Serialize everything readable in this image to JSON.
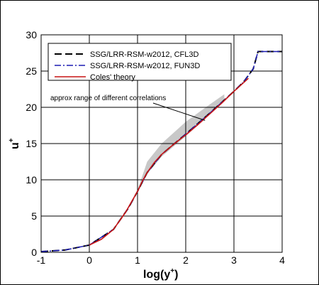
{
  "chart_data": {
    "type": "line",
    "xlabel": "log(y",
    "xlabel_sup": "+",
    "xlabel_close": ")",
    "ylabel": "u",
    "ylabel_sup": "+",
    "xlim": [
      -1,
      4
    ],
    "ylim": [
      0,
      30
    ],
    "xticks": [
      -1,
      0,
      1,
      2,
      3,
      4
    ],
    "yticks": [
      0,
      5,
      10,
      15,
      20,
      25,
      30
    ],
    "grid": true,
    "legend_position": "top-left",
    "series": [
      {
        "name": "SSG/LRR-RSM-w2012, CFL3D",
        "color": "#000000",
        "style": "dashed",
        "x": [
          -1,
          -0.5,
          0,
          0.5,
          0.8,
          1.0,
          1.2,
          1.5,
          2.0,
          2.5,
          3.0,
          3.2,
          3.4,
          3.45,
          3.5,
          3.6,
          4.0
        ],
        "y": [
          0.1,
          0.32,
          1.0,
          3.15,
          6.0,
          8.4,
          11.0,
          13.5,
          16.3,
          19.2,
          22.2,
          23.5,
          25.3,
          26.5,
          27.7,
          27.7,
          27.7
        ]
      },
      {
        "name": "SSG/LRR-RSM-w2012, FUN3D",
        "color": "#1a1ab4",
        "style": "dashdot",
        "x": [
          -1,
          -0.5,
          0,
          0.5,
          0.8,
          1.0,
          1.2,
          1.5,
          2.0,
          2.5,
          3.0,
          3.2,
          3.4,
          3.45,
          3.5,
          3.6,
          4.0
        ],
        "y": [
          0.1,
          0.32,
          1.0,
          3.15,
          6.0,
          8.4,
          11.0,
          13.5,
          16.3,
          19.2,
          22.2,
          23.5,
          25.3,
          26.5,
          27.7,
          27.7,
          27.7
        ]
      },
      {
        "name": "Coles' theory",
        "color": "#c81414",
        "style": "solid",
        "x": [
          0,
          0.25,
          0.5,
          0.75,
          1.0,
          1.1,
          1.2,
          1.35,
          1.5,
          1.75,
          2.0,
          2.25,
          2.5,
          2.75,
          3.0,
          3.2,
          3.3
        ],
        "y": [
          1.0,
          1.8,
          3.15,
          5.5,
          8.4,
          9.8,
          11.0,
          12.4,
          13.5,
          14.9,
          16.2,
          17.6,
          19.1,
          20.6,
          22.2,
          23.4,
          24.0
        ]
      }
    ],
    "band": {
      "name": "approx range of different correlations",
      "color": "#c8c8c8",
      "x": [
        1.0,
        1.2,
        1.5,
        2.0,
        2.5,
        2.8
      ],
      "y_lower": [
        8.4,
        10.8,
        13.2,
        16.0,
        19.0,
        21.0
      ],
      "y_upper": [
        8.6,
        12.5,
        15.0,
        18.0,
        20.4,
        21.8
      ]
    },
    "annotation": {
      "text": "approx range of different correlations",
      "points_to_x": 2.4,
      "points_to_y": 18.2
    }
  }
}
